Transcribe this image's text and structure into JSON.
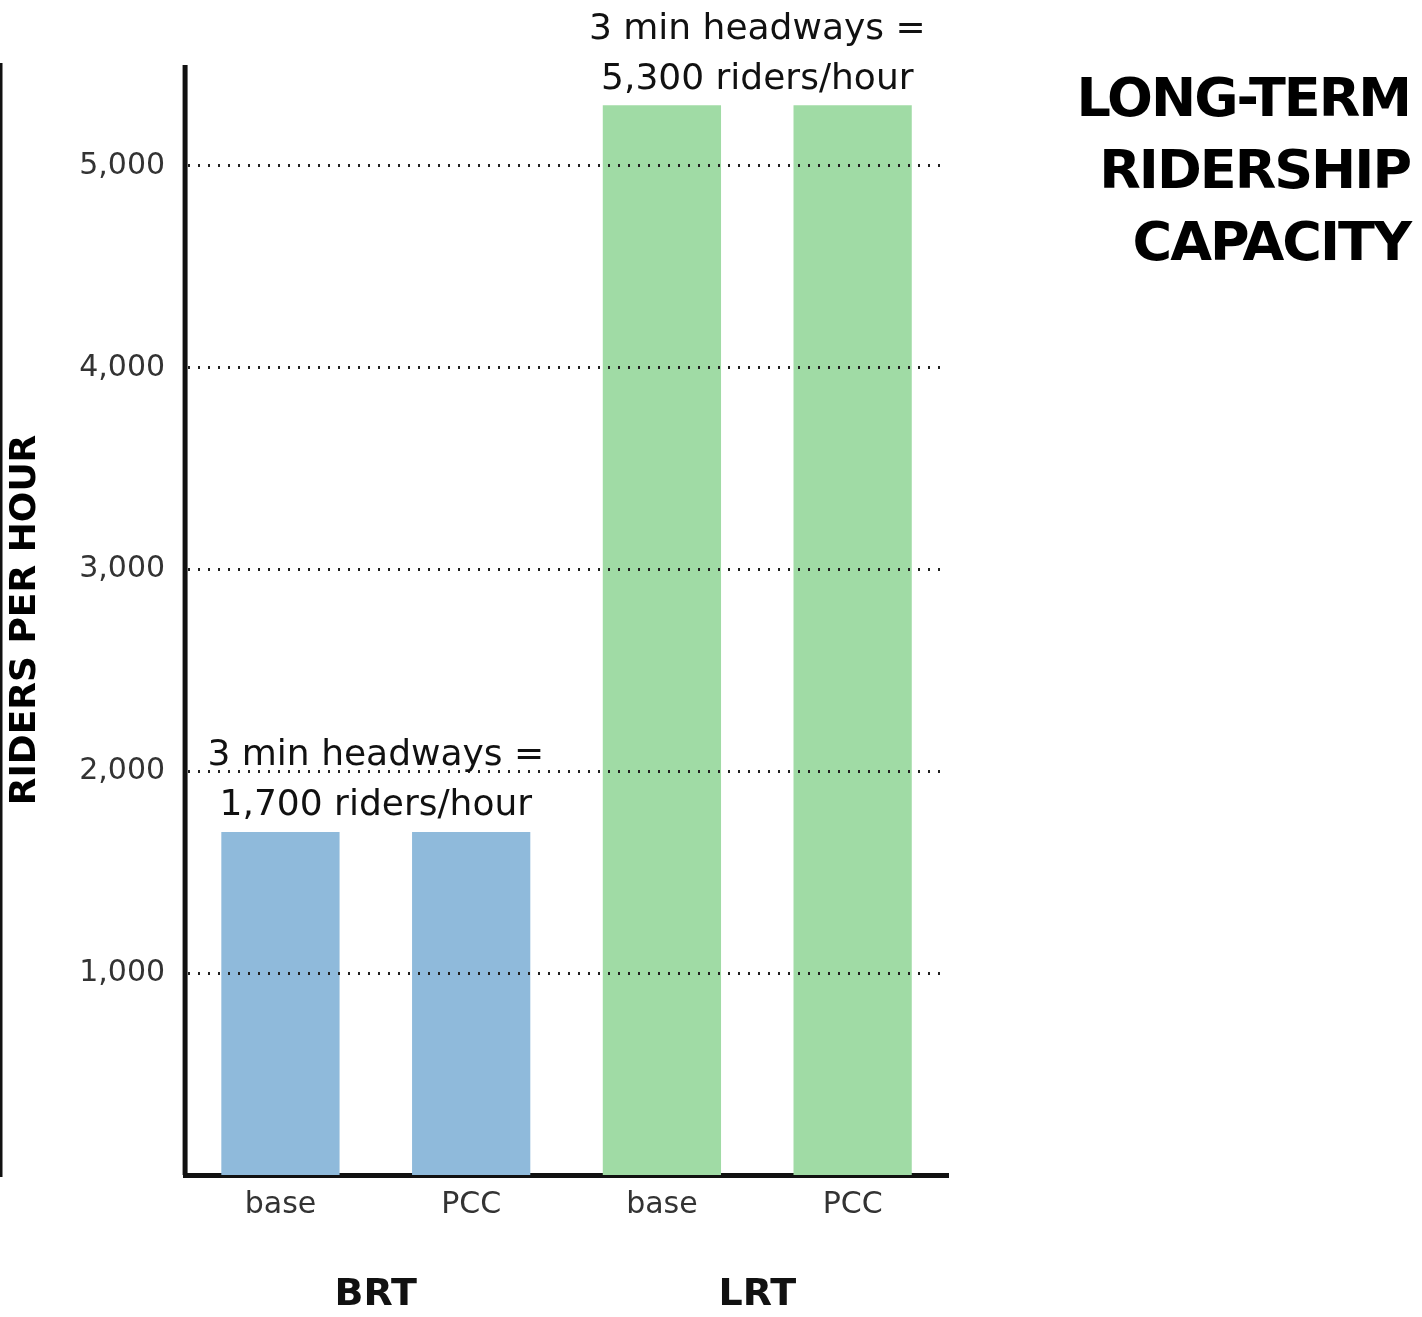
{
  "chart_data": {
    "type": "bar",
    "title": "LONG-TERM\nRIDERSHIP\nCAPACITY",
    "ylabel": "RIDERS PER HOUR",
    "categories": [
      "base",
      "PCC",
      "base",
      "PCC"
    ],
    "values": [
      1700,
      1700,
      5300,
      5300
    ],
    "colors": [
      "#8fbadb",
      "#8fbadb",
      "#a0dba5",
      "#a0dba5"
    ],
    "ylim": [
      0,
      5500
    ],
    "yticks": [
      {
        "value": 1000,
        "label": "1,000"
      },
      {
        "value": 2000,
        "label": "2,000"
      },
      {
        "value": 3000,
        "label": "3,000"
      },
      {
        "value": 4000,
        "label": "4,000"
      },
      {
        "value": 5000,
        "label": "5,000"
      }
    ],
    "grid": "y",
    "legend": false,
    "annotations": [
      "3 min headways =\n1,700 riders/hour",
      "3 min headways =\n5,300 riders/hour",
      "BRT",
      "LRT"
    ]
  }
}
